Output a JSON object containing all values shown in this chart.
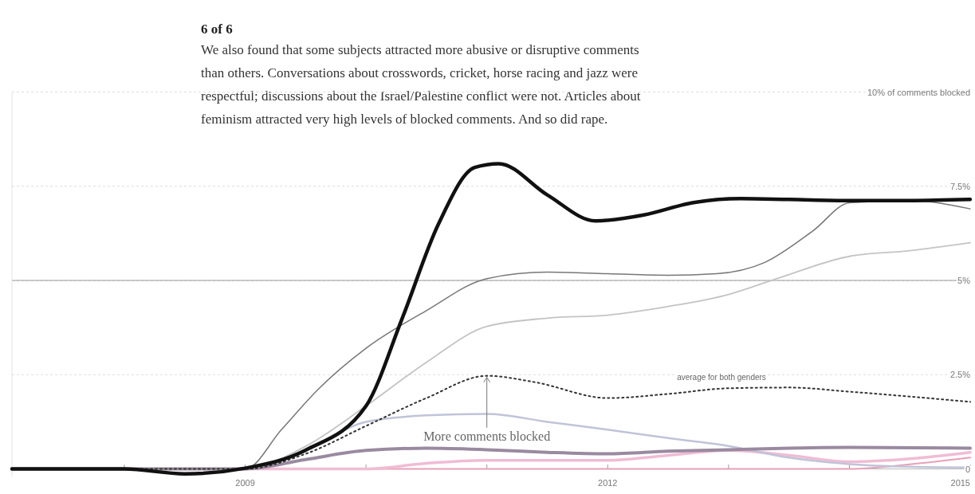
{
  "chart_data": {
    "type": "line",
    "title": "6 of 6",
    "subtitle": "We also found that some subjects attracted more abusive or disruptive comments than others. Conversations about crosswords, cricket, horse racing and jazz were respectful; discussions about the Israel/Palestine conflict were not. Articles about feminism attracted very high levels of blocked comments. And so did rape.",
    "xlim": [
      2007.07,
      2015
    ],
    "xticks": [
      {
        "value": 2008,
        "label": null
      },
      2009,
      {
        "value": 2010,
        "label": null
      },
      {
        "value": 2011,
        "label": null
      },
      2012,
      {
        "value": 2013,
        "label": null
      },
      {
        "value": 2014,
        "label": null
      },
      2015
    ],
    "ylim": [
      -0.2,
      10
    ],
    "yticks": [
      {
        "value": 0,
        "label": "0"
      },
      {
        "value": 2.5,
        "label": "2.5%"
      },
      {
        "value": 5,
        "label": "5%"
      },
      {
        "value": 7.5,
        "label": "7.5%"
      },
      {
        "value": 10,
        "label": "10% of comments blocked"
      }
    ],
    "grid": "y",
    "legend": false,
    "ref_lines": [
      {
        "axis": "y",
        "value": 5,
        "color": "#999999"
      }
    ],
    "annotations": [
      "average for both genders",
      {
        "text": "More comments blocked",
        "x": 2011,
        "y": 2.47
      }
    ],
    "series": [
      {
        "color": "#e8a0b8",
        "x": [
          2007.07,
          2012,
          2014,
          2014.5,
          2015
        ],
        "values": [
          0,
          0,
          0,
          0.12,
          0.3
        ]
      },
      {
        "color": "#f0bcd4",
        "x": [
          2007.07,
          2009,
          2010,
          2010.5,
          2011,
          2012,
          2012.5,
          2013,
          2013.5,
          2014,
          2014.5,
          2015
        ],
        "values": [
          0,
          0,
          0,
          0.15,
          0.23,
          0.23,
          0.36,
          0.49,
          0.36,
          0.19,
          0.27,
          0.44
        ]
      },
      {
        "color": "#c0c4d8",
        "x": [
          2007.07,
          2009,
          2009.5,
          2010,
          2010.5,
          2011,
          2011.5,
          2012,
          2012.5,
          2013,
          2013.5,
          2014,
          2014.5,
          2015
        ],
        "values": [
          0,
          0,
          0.5,
          1.25,
          1.42,
          1.46,
          1.25,
          1.04,
          0.82,
          0.61,
          0.3,
          0.13,
          0.06,
          0.04
        ]
      },
      {
        "color": "#9a8aa0",
        "x": [
          2007.07,
          2009,
          2009.5,
          2010,
          2010.5,
          2011,
          2011.5,
          2012,
          2012.5,
          2013,
          2013.5,
          2014,
          2015
        ],
        "values": [
          0,
          0,
          0.25,
          0.49,
          0.55,
          0.51,
          0.44,
          0.4,
          0.47,
          0.51,
          0.55,
          0.57,
          0.55
        ]
      },
      {
        "color": "#c4c4c4",
        "x": [
          2007.07,
          2009,
          2009.5,
          2010,
          2010.5,
          2011,
          2011.5,
          2012,
          2012.5,
          2013,
          2013.4,
          2014,
          2014.5,
          2015
        ],
        "values": [
          0,
          0,
          0.6,
          1.67,
          2.83,
          3.78,
          4.0,
          4.08,
          4.31,
          4.63,
          5.05,
          5.64,
          5.79,
          6.0
        ]
      },
      {
        "color": "#777777",
        "x": [
          2007.07,
          2009,
          2009.3,
          2009.6,
          2010,
          2010.5,
          2011,
          2011.5,
          2012,
          2012.5,
          2012.9,
          2013.3,
          2013.7,
          2014,
          2014.5,
          2015
        ],
        "values": [
          0,
          0,
          1.04,
          2.1,
          3.2,
          4.2,
          5.05,
          5.22,
          5.18,
          5.14,
          5.18,
          5.48,
          6.32,
          7.06,
          7.12,
          6.9
        ]
      },
      {
        "color": "#333333",
        "line_style": "dotted",
        "x": [
          2007.07,
          2009,
          2009.5,
          2010,
          2010.5,
          2011,
          2011.4,
          2012,
          2012.5,
          2013,
          2013.5,
          2014,
          2014.5,
          2015
        ],
        "values": [
          0,
          0,
          0.4,
          1.14,
          1.88,
          2.47,
          2.3,
          1.88,
          1.99,
          2.14,
          2.16,
          2.05,
          1.92,
          1.78
        ]
      },
      {
        "color": "#111111",
        "x": [
          2007.07,
          2008,
          2008.5,
          2009,
          2009.5,
          2010,
          2010.3,
          2010.6,
          2010.9,
          2011.1,
          2011.5,
          2011.9,
          2012.3,
          2012.7,
          2013.1,
          2013.5,
          2014,
          2014.5,
          2015
        ],
        "values": [
          0,
          0,
          -0.13,
          0.02,
          0.5,
          1.67,
          4.0,
          6.5,
          8.0,
          8.1,
          7.27,
          6.58,
          6.74,
          7.06,
          7.17,
          7.15,
          7.12,
          7.12,
          7.15
        ]
      }
    ]
  }
}
